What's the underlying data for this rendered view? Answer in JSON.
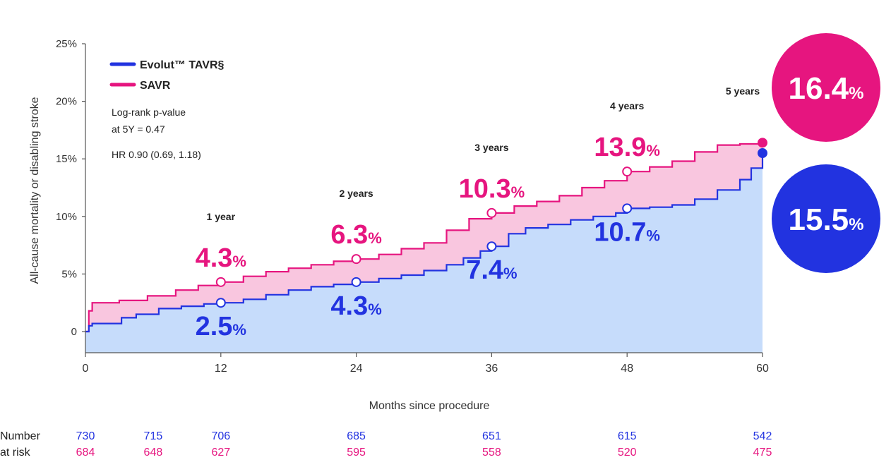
{
  "colors": {
    "tavr": "#2233e0",
    "savr": "#e6157f",
    "tavr_fill": "#c6dcfb",
    "savr_fill": "#f9c6df",
    "axis": "#555555"
  },
  "chart_data": {
    "type": "area",
    "ylabel": "All-cause mortality or disabling stroke",
    "xlabel": "Months since procedure",
    "xlim": [
      0,
      60
    ],
    "ylim": [
      0,
      25
    ],
    "x_ticks": [
      "0",
      "12",
      "24",
      "36",
      "48",
      "60"
    ],
    "x_tick_values": [
      0,
      12,
      24,
      36,
      48,
      60
    ],
    "y_ticks": [
      {
        "value": 0,
        "label": "0"
      },
      {
        "value": 5,
        "label": "5%"
      },
      {
        "value": 10,
        "label": "10%"
      },
      {
        "value": 15,
        "label": "15%"
      },
      {
        "value": 20,
        "label": "20%"
      },
      {
        "value": 25,
        "label": "25%"
      }
    ],
    "legend": {
      "placement": "top-left",
      "entries": [
        {
          "name": "Evolut™ TAVR§",
          "color": "#2233e0"
        },
        {
          "name": "SAVR",
          "color": "#e6157f"
        }
      ]
    },
    "stats": {
      "line1": "Log-rank p-value",
      "line2": "at 5Y = 0.47",
      "hr": "HR 0.90 (0.69, 1.18)"
    },
    "series": [
      {
        "name": "Evolut™ TAVR§",
        "color": "#2233e0",
        "x": [
          0,
          0.3,
          0.6,
          2.5,
          3.2,
          4.5,
          6.5,
          8.5,
          10.5,
          12,
          14,
          16,
          18,
          20,
          22,
          24,
          26,
          28,
          30,
          32,
          33.5,
          35,
          36,
          37.5,
          39,
          41,
          43,
          45,
          47,
          48,
          50,
          52,
          54,
          56,
          58,
          59,
          60
        ],
        "y": [
          0,
          0.5,
          0.7,
          0.7,
          1.2,
          1.5,
          2.0,
          2.2,
          2.4,
          2.5,
          2.8,
          3.2,
          3.6,
          3.9,
          4.1,
          4.3,
          4.6,
          4.9,
          5.3,
          5.8,
          6.4,
          7.0,
          7.4,
          8.5,
          9.0,
          9.3,
          9.7,
          10.0,
          10.3,
          10.7,
          10.8,
          11.0,
          11.5,
          12.3,
          13.2,
          14.2,
          15.5
        ]
      },
      {
        "name": "SAVR",
        "color": "#e6157f",
        "x": [
          0,
          0.3,
          0.6,
          3,
          5.5,
          8,
          10,
          12,
          14,
          16,
          18,
          20,
          22,
          24,
          26,
          28,
          30,
          32,
          34,
          36,
          38,
          40,
          42,
          44,
          46,
          48,
          50,
          52,
          54,
          56,
          58,
          60
        ],
        "y": [
          0,
          1.8,
          2.5,
          2.7,
          3.1,
          3.6,
          4.0,
          4.3,
          4.8,
          5.2,
          5.5,
          5.8,
          6.1,
          6.3,
          6.7,
          7.2,
          7.7,
          8.8,
          9.8,
          10.3,
          10.9,
          11.3,
          11.8,
          12.5,
          13.1,
          13.9,
          14.3,
          14.8,
          15.6,
          16.2,
          16.3,
          16.4
        ]
      }
    ],
    "annotations": [
      {
        "year": "1 year",
        "x": 12,
        "savr_value": 4.3,
        "savr_text": "4.3",
        "tavr_value": 2.5,
        "tavr_text": "2.5"
      },
      {
        "year": "2 years",
        "x": 24,
        "savr_value": 6.3,
        "savr_text": "6.3",
        "tavr_value": 4.3,
        "tavr_text": "4.3"
      },
      {
        "year": "3 years",
        "x": 36,
        "savr_value": 10.3,
        "savr_text": "10.3",
        "tavr_value": 7.4,
        "tavr_text": "7.4"
      },
      {
        "year": "4 years",
        "x": 48,
        "savr_value": 13.9,
        "savr_text": "13.9",
        "tavr_value": 10.7,
        "tavr_text": "10.7"
      }
    ],
    "five_year": {
      "label": "5 years",
      "savr_value": 16.4,
      "savr_text": "16.4",
      "tavr_value": 15.5,
      "tavr_text": "15.5"
    },
    "percent_sign": "%",
    "number_at_risk": {
      "label_line1": "Number",
      "label_line2": "at risk",
      "x": [
        0,
        6,
        12,
        24,
        36,
        48,
        60
      ],
      "tavr": [
        "730",
        "715",
        "706",
        "685",
        "651",
        "615",
        "542"
      ],
      "savr": [
        "684",
        "648",
        "627",
        "595",
        "558",
        "520",
        "475"
      ]
    }
  }
}
